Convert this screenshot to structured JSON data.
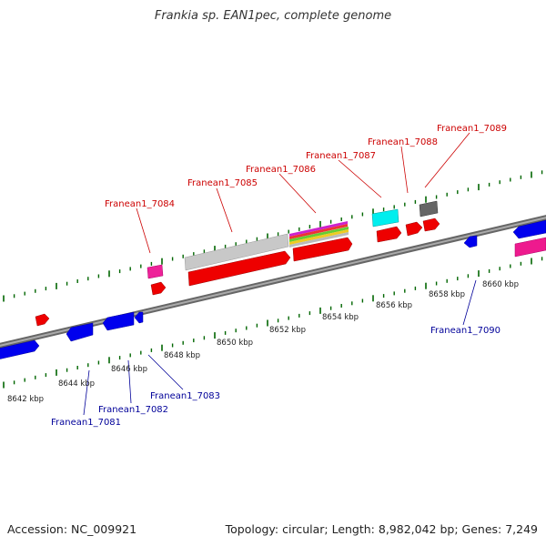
{
  "title": "Frankia sp. EAN1pec, complete genome",
  "footer": {
    "accession": "Accession: NC_009921",
    "stats": "Topology: circular; Length: 8,982,042 bp; Genes: 7,249"
  },
  "colors": {
    "forward_label": "#cc0000",
    "reverse_label": "#000099",
    "backbone": "#888888",
    "tick_marks": "#006600"
  },
  "axis": {
    "unit": "kbp",
    "tick_labels": [
      "8642 kbp",
      "8644 kbp",
      "8646 kbp",
      "8648 kbp",
      "8650 kbp",
      "8652 kbp",
      "8654 kbp",
      "8656 kbp",
      "8658 kbp",
      "8660 kbp"
    ]
  },
  "gene_labels": {
    "forward": [
      "Franean1_7084",
      "Franean1_7085",
      "Franean1_7086",
      "Franean1_7087",
      "Franean1_7088",
      "Franean1_7089"
    ],
    "reverse": [
      "Franean1_7081",
      "Franean1_7082",
      "Franean1_7083",
      "Franean1_7090"
    ]
  }
}
